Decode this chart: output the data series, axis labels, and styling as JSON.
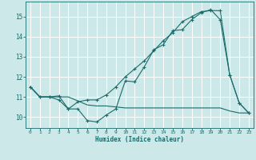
{
  "xlabel": "Humidex (Indice chaleur)",
  "bg_color": "#cce8e8",
  "grid_color": "#ffffff",
  "line_color": "#1a6b6b",
  "xlim": [
    -0.5,
    23.5
  ],
  "ylim": [
    9.45,
    15.75
  ],
  "xticks": [
    0,
    1,
    2,
    3,
    4,
    5,
    6,
    7,
    8,
    9,
    10,
    11,
    12,
    13,
    14,
    15,
    16,
    17,
    18,
    19,
    20,
    21,
    22,
    23
  ],
  "yticks": [
    10,
    11,
    12,
    13,
    14,
    15
  ],
  "line1_y": [
    11.5,
    11.0,
    11.0,
    10.85,
    10.4,
    10.75,
    10.85,
    10.85,
    11.1,
    11.5,
    12.0,
    12.4,
    12.8,
    13.3,
    13.8,
    14.2,
    14.75,
    15.0,
    15.25,
    15.3,
    15.3,
    12.1,
    10.7,
    10.2
  ],
  "line2_y": [
    11.5,
    11.0,
    11.0,
    11.05,
    10.4,
    10.4,
    9.82,
    9.75,
    10.1,
    10.4,
    11.8,
    11.75,
    12.5,
    13.35,
    13.6,
    14.3,
    14.35,
    14.85,
    15.2,
    15.35,
    14.85,
    12.1,
    10.7,
    10.2
  ],
  "line3_y": [
    11.5,
    11.0,
    11.0,
    11.0,
    11.0,
    10.8,
    10.6,
    10.55,
    10.55,
    10.5,
    10.45,
    10.45,
    10.45,
    10.45,
    10.45,
    10.45,
    10.45,
    10.45,
    10.45,
    10.45,
    10.45,
    10.3,
    10.2,
    10.2
  ]
}
